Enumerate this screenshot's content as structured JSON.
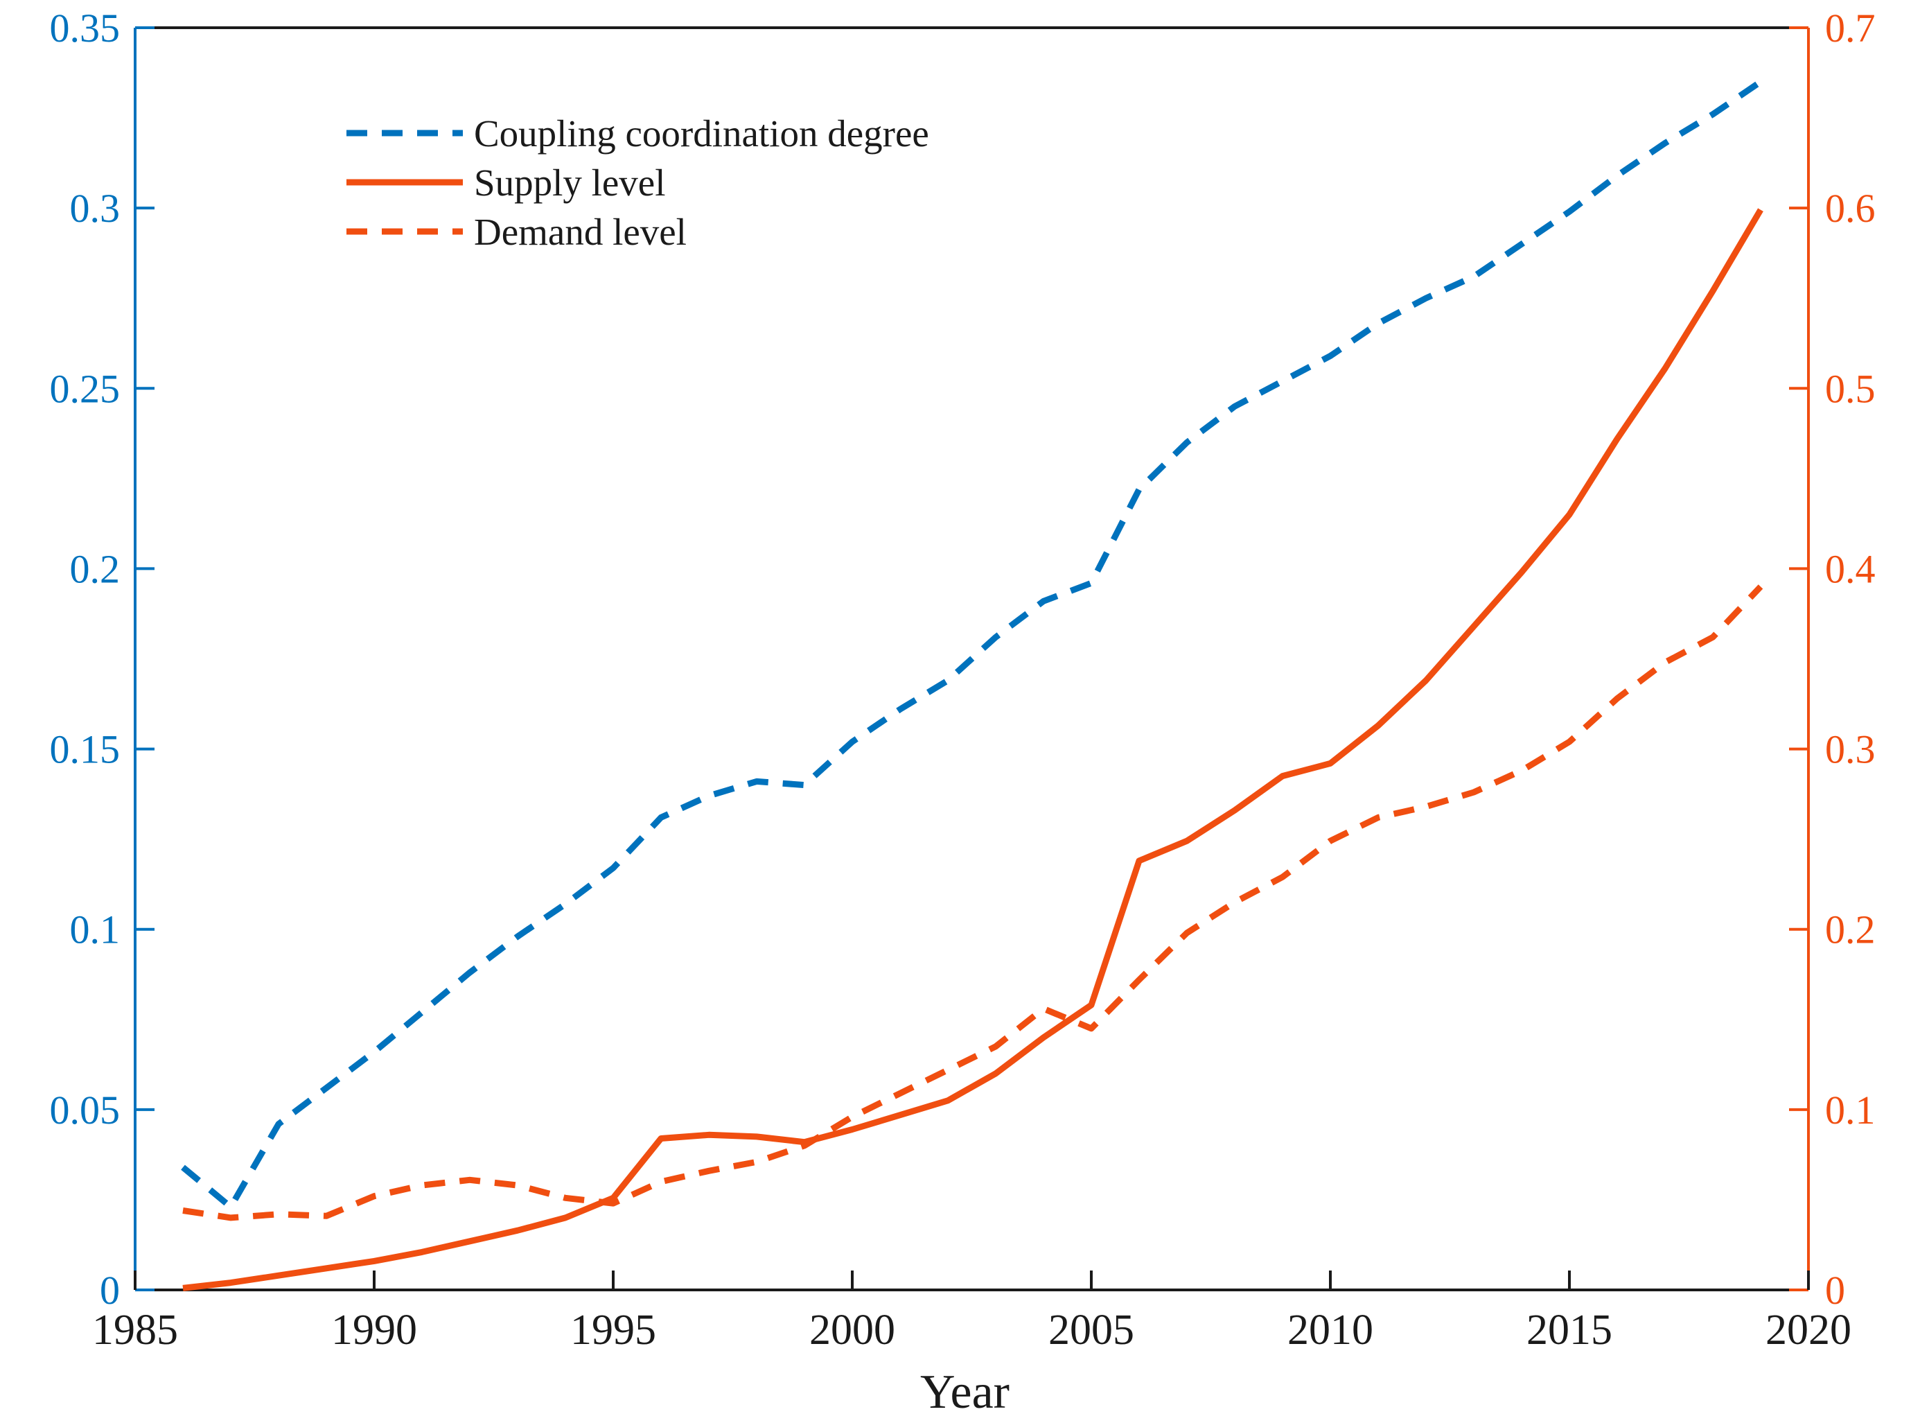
{
  "figure": {
    "background": "#ffffff",
    "xlabel": "Year"
  },
  "chart_data": {
    "type": "line",
    "title": "",
    "xlabel": "Year",
    "ylabel_left": "",
    "ylabel_right": "",
    "grid": false,
    "x_range": [
      1985,
      2020
    ],
    "x_tick_labels": [
      "1985",
      "1990",
      "1995",
      "2000",
      "2005",
      "2010",
      "2015",
      "2020"
    ],
    "x_tick_values": [
      1985,
      1990,
      1995,
      2000,
      2005,
      2010,
      2015,
      2020
    ],
    "left_axis": {
      "color": "#0072BD",
      "range": [
        0,
        0.35
      ],
      "tick_values": [
        0,
        0.05,
        0.1,
        0.15,
        0.2,
        0.25,
        0.3,
        0.35
      ],
      "tick_labels": [
        "0",
        "0.05",
        "0.1",
        "0.15",
        "0.2",
        "0.25",
        "0.3",
        "0.35"
      ]
    },
    "right_axis": {
      "color": "#F04E10",
      "range": [
        0,
        0.7
      ],
      "tick_values": [
        0,
        0.1,
        0.2,
        0.3,
        0.4,
        0.5,
        0.6,
        0.7
      ],
      "tick_labels": [
        "0",
        "0.1",
        "0.2",
        "0.3",
        "0.4",
        "0.5",
        "0.6",
        "0.7"
      ]
    },
    "axis_frame_color": "#1a1a1a",
    "x": [
      1986,
      1987,
      1988,
      1989,
      1990,
      1991,
      1992,
      1993,
      1994,
      1995,
      1996,
      1997,
      1998,
      1999,
      2000,
      2001,
      2002,
      2003,
      2004,
      2005,
      2006,
      2007,
      2008,
      2009,
      2010,
      2011,
      2012,
      2013,
      2014,
      2015,
      2016,
      2017,
      2018,
      2019
    ],
    "series": [
      {
        "name": "Coupling coordination degree",
        "axis": "left",
        "style": "dashed",
        "color": "#0072BD",
        "values": [
          0.034,
          0.023,
          0.046,
          0.056,
          0.066,
          0.077,
          0.088,
          0.098,
          0.107,
          0.117,
          0.131,
          0.137,
          0.141,
          0.14,
          0.152,
          0.161,
          0.169,
          0.181,
          0.191,
          0.196,
          0.222,
          0.235,
          0.245,
          0.252,
          0.259,
          0.268,
          0.275,
          0.281,
          0.29,
          0.299,
          0.309,
          0.318,
          0.326,
          0.335
        ]
      },
      {
        "name": "Supply level",
        "axis": "right",
        "style": "solid",
        "color": "#F04E10",
        "values": [
          0.001,
          0.004,
          0.008,
          0.012,
          0.016,
          0.021,
          0.027,
          0.033,
          0.04,
          0.051,
          0.084,
          0.086,
          0.085,
          0.082,
          0.089,
          0.097,
          0.105,
          0.12,
          0.14,
          0.158,
          0.238,
          0.249,
          0.266,
          0.285,
          0.292,
          0.313,
          0.338,
          0.368,
          0.398,
          0.43,
          0.472,
          0.511,
          0.554,
          0.599
        ]
      },
      {
        "name": "Demand level",
        "axis": "right",
        "style": "dashed",
        "color": "#F04E10",
        "values": [
          0.044,
          0.04,
          0.042,
          0.041,
          0.052,
          0.058,
          0.061,
          0.058,
          0.051,
          0.048,
          0.06,
          0.066,
          0.071,
          0.08,
          0.096,
          0.109,
          0.122,
          0.135,
          0.156,
          0.145,
          0.172,
          0.198,
          0.215,
          0.229,
          0.249,
          0.262,
          0.268,
          0.276,
          0.288,
          0.304,
          0.328,
          0.348,
          0.362,
          0.39
        ]
      }
    ],
    "legend": {
      "position": "top-left",
      "entries": [
        "Coupling coordination degree",
        "Supply level",
        "Demand level"
      ]
    }
  }
}
